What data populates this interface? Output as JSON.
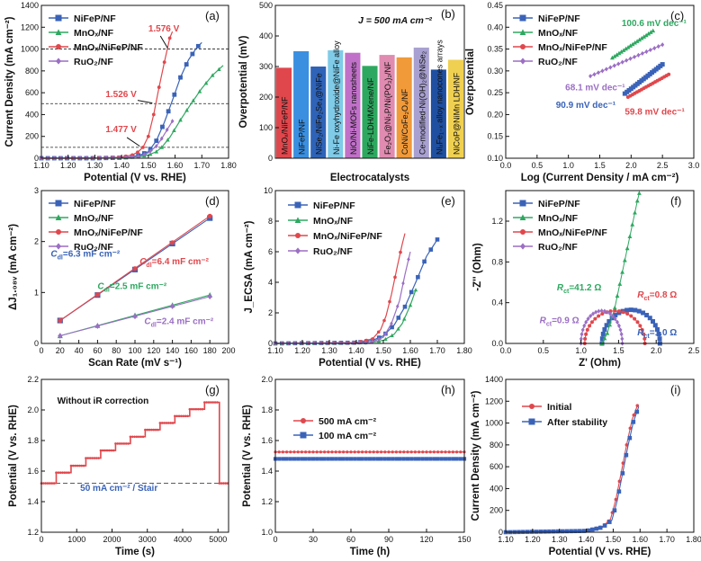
{
  "chart_data": [
    {
      "id": "a",
      "type": "line",
      "panel_label": "(a)",
      "xlabel": "Potential (V vs. RHE)",
      "ylabel": "Current Density (mA cm⁻²)",
      "xlim": [
        1.1,
        1.8
      ],
      "ylim": [
        0,
        1400
      ],
      "xticks": [
        1.1,
        1.2,
        1.3,
        1.4,
        1.5,
        1.6,
        1.7,
        1.8
      ],
      "yticks": [
        0,
        200,
        400,
        600,
        800,
        1000,
        1200,
        1400
      ],
      "ref_lines": [
        100,
        500,
        1000
      ],
      "series": [
        {
          "name": "NiFeP/NF",
          "color": "#3a63b8",
          "marker": "square",
          "x": [
            1.1,
            1.3,
            1.4,
            1.44,
            1.47,
            1.5,
            1.53,
            1.56,
            1.59,
            1.62,
            1.65,
            1.68,
            1.7
          ],
          "y": [
            0,
            0,
            5,
            15,
            30,
            60,
            160,
            330,
            530,
            740,
            900,
            1010,
            1060
          ]
        },
        {
          "name": "MnOₓ/NF",
          "color": "#2ea860",
          "marker": "triangle",
          "x": [
            1.1,
            1.4,
            1.47,
            1.5,
            1.53,
            1.55,
            1.58,
            1.62,
            1.66,
            1.7,
            1.74,
            1.78
          ],
          "y": [
            0,
            5,
            15,
            30,
            60,
            100,
            190,
            350,
            500,
            640,
            760,
            850
          ]
        },
        {
          "name": "MnOₓ/NiFeP/NF",
          "color": "#e0474c",
          "marker": "circle",
          "x": [
            1.1,
            1.3,
            1.4,
            1.44,
            1.46,
            1.48,
            1.5,
            1.52,
            1.54,
            1.56,
            1.58,
            1.59
          ],
          "y": [
            0,
            0,
            10,
            30,
            55,
            100,
            200,
            400,
            650,
            880,
            1100,
            1160
          ]
        },
        {
          "name": "RuO₂/NF",
          "color": "#9b6fc4",
          "marker": "diamond",
          "x": [
            1.1,
            1.4,
            1.47,
            1.5,
            1.53,
            1.55,
            1.57,
            1.59
          ],
          "y": [
            0,
            5,
            20,
            50,
            110,
            180,
            260,
            340
          ]
        }
      ],
      "annotations": [
        {
          "text": "1.576 V",
          "x": 1.5,
          "y": 1160,
          "color": "#e0474c"
        },
        {
          "text": "1.526 V",
          "x": 1.34,
          "y": 560,
          "color": "#e0474c"
        },
        {
          "text": "1.477 V",
          "x": 1.34,
          "y": 240,
          "color": "#e0474c"
        }
      ]
    },
    {
      "id": "b",
      "type": "bar",
      "panel_label": "(b)",
      "xlabel": "Electrocatalysts",
      "ylabel": "Overpotential (mV)",
      "ylim": [
        0,
        500
      ],
      "yticks": [
        0,
        100,
        200,
        300,
        400,
        500
      ],
      "subtitle": "J = 500 mA cm⁻²",
      "categories": [
        "MnOₓ/NiFeP/NF",
        "NiFeP/NF",
        "NiSe₂/NiFe₂Se₄@NiFe",
        "Ni-Fe oxyhydroxide@NiFe alloy",
        "NiO/Ni-MOFs nanosheets",
        "NiFe-LDH/MXene/NF",
        "Fe₂O₃@Ni₂P/Ni(PO₃)₂/NF",
        "CoNi/CoFe₂O₄/NF",
        "Ce-modified-Ni(OH)₂@NiSe₂",
        "NiₓFe₁₋ₓ alloy nanocones arrays",
        "NiCoP@NiMn LDH/NF"
      ],
      "values": [
        296,
        350,
        300,
        353,
        345,
        302,
        338,
        330,
        362,
        290,
        322
      ],
      "colors": [
        "#e0474c",
        "#3a8fe0",
        "#2e63b8",
        "#7fcbe8",
        "#c070c8",
        "#2ea860",
        "#e08bb0",
        "#f09a3a",
        "#a8a0d0",
        "#1f4fa0",
        "#f0d050"
      ]
    },
    {
      "id": "c",
      "type": "scatter",
      "panel_label": "(c)",
      "xlabel": "Log (Current Density / mA cm⁻²)",
      "ylabel": "Overpotential",
      "xlim": [
        0.0,
        3.0
      ],
      "ylim": [
        0.1,
        0.45
      ],
      "xticks": [
        0.0,
        0.5,
        1.0,
        1.5,
        2.0,
        2.5,
        3.0
      ],
      "yticks": [
        0.1,
        0.15,
        0.2,
        0.25,
        0.3,
        0.35,
        0.4,
        0.45
      ],
      "series": [
        {
          "name": "NiFeP/NF",
          "color": "#3a63b8",
          "marker": "square",
          "x0": 1.9,
          "x1": 2.5,
          "y0": 0.248,
          "y1": 0.315
        },
        {
          "name": "MnOₓ/NF",
          "color": "#2ea860",
          "marker": "triangle",
          "x0": 1.7,
          "x1": 2.35,
          "y0": 0.33,
          "y1": 0.392
        },
        {
          "name": "MnOₓ/NiFeP/NF",
          "color": "#e0474c",
          "marker": "circle",
          "x0": 1.95,
          "x1": 2.6,
          "y0": 0.24,
          "y1": 0.292
        },
        {
          "name": "RuO₂/NF",
          "color": "#9b6fc4",
          "marker": "diamond",
          "x0": 1.35,
          "x1": 2.5,
          "y0": 0.288,
          "y1": 0.36
        }
      ],
      "annotations": [
        {
          "text": "100.6 mV dec⁻¹",
          "x": 1.85,
          "y": 0.403,
          "color": "#2ea860"
        },
        {
          "text": "68.1 mV dec⁻¹",
          "x": 0.95,
          "y": 0.255,
          "color": "#9b6fc4"
        },
        {
          "text": "90.9 mV dec⁻¹",
          "x": 0.8,
          "y": 0.215,
          "color": "#3a63b8"
        },
        {
          "text": "59.8 mV dec⁻¹",
          "x": 1.9,
          "y": 0.2,
          "color": "#e0474c"
        }
      ]
    },
    {
      "id": "d",
      "type": "scatter",
      "panel_label": "(d)",
      "xlabel": "Scan Rate (mV s⁻¹)",
      "ylabel": "ΔJ₁.₀₈ᵥ (mA cm⁻²)",
      "xlim": [
        0,
        200
      ],
      "ylim": [
        0.0,
        3.0
      ],
      "xticks": [
        0,
        20,
        40,
        60,
        80,
        100,
        120,
        140,
        160,
        180,
        200
      ],
      "yticks": [
        0,
        1,
        2,
        3
      ],
      "x": [
        20,
        60,
        100,
        140,
        180
      ],
      "series": [
        {
          "name": "NiFeP/NF",
          "color": "#3a63b8",
          "marker": "square",
          "y": [
            0.45,
            0.95,
            1.45,
            1.96,
            2.46
          ]
        },
        {
          "name": "MnOₓ/NF",
          "color": "#2ea860",
          "marker": "triangle",
          "y": [
            0.15,
            0.35,
            0.55,
            0.75,
            0.95
          ]
        },
        {
          "name": "MnOₓ/NiFeP/NF",
          "color": "#e0474c",
          "marker": "circle",
          "y": [
            0.45,
            0.96,
            1.47,
            1.98,
            2.5
          ]
        },
        {
          "name": "RuO₂/NF",
          "color": "#9b6fc4",
          "marker": "diamond",
          "y": [
            0.15,
            0.34,
            0.53,
            0.73,
            0.92
          ]
        }
      ],
      "annotations": [
        {
          "text": "C",
          "sub": "dl",
          "rest": "=6.3 mF cm⁻²",
          "x": 10,
          "y": 1.7,
          "color": "#3a63b8"
        },
        {
          "text": "C",
          "sub": "dl",
          "rest": "=6.4 mF cm⁻²",
          "x": 105,
          "y": 1.55,
          "color": "#e0474c"
        },
        {
          "text": "C",
          "sub": "dl",
          "rest": "=2.5 mF cm⁻²",
          "x": 60,
          "y": 1.07,
          "color": "#2ea860"
        },
        {
          "text": "C",
          "sub": "dl",
          "rest": "=2.4 mF cm⁻²",
          "x": 110,
          "y": 0.38,
          "color": "#9b6fc4"
        }
      ]
    },
    {
      "id": "e",
      "type": "line",
      "panel_label": "(e)",
      "xlabel": "Potential (V vs. RHE)",
      "ylabel": "J_ECSA (mA cm⁻²)",
      "xlim": [
        1.1,
        1.8
      ],
      "ylim": [
        0,
        10
      ],
      "xticks": [
        1.1,
        1.2,
        1.3,
        1.4,
        1.5,
        1.6,
        1.7,
        1.8
      ],
      "yticks": [
        0,
        2,
        4,
        6,
        8,
        10
      ],
      "series": [
        {
          "name": "NiFeP/NF",
          "color": "#3a63b8",
          "marker": "square",
          "x": [
            1.1,
            1.4,
            1.46,
            1.5,
            1.54,
            1.58,
            1.62,
            1.66,
            1.7
          ],
          "y": [
            0,
            0.05,
            0.2,
            0.5,
            1.2,
            2.4,
            4.0,
            5.7,
            6.8
          ]
        },
        {
          "name": "MnOₓ/NF",
          "color": "#2ea860",
          "marker": "triangle",
          "x": [
            1.1,
            1.45,
            1.5,
            1.54,
            1.57,
            1.6,
            1.62
          ],
          "y": [
            0,
            0.05,
            0.2,
            0.6,
            1.3,
            2.5,
            3.5
          ]
        },
        {
          "name": "MnOₓ/NiFeP/NF",
          "color": "#e0474c",
          "marker": "circle",
          "x": [
            1.1,
            1.4,
            1.46,
            1.49,
            1.51,
            1.53,
            1.55,
            1.57,
            1.58
          ],
          "y": [
            0,
            0.05,
            0.3,
            0.9,
            1.8,
            3.2,
            4.9,
            6.5,
            7.2
          ]
        },
        {
          "name": "RuO₂/NF",
          "color": "#9b6fc4",
          "marker": "diamond",
          "x": [
            1.1,
            1.45,
            1.5,
            1.53,
            1.56,
            1.58,
            1.6
          ],
          "y": [
            0,
            0.05,
            0.4,
            1.3,
            2.8,
            4.5,
            6.0
          ]
        }
      ]
    },
    {
      "id": "f",
      "type": "scatter",
      "panel_label": "(f)",
      "xlabel": "Z' (Ohm)",
      "ylabel": "-Z'' (Ohm)",
      "xlim": [
        0.0,
        2.5
      ],
      "ylim": [
        0.0,
        1.5
      ],
      "xticks": [
        0.0,
        0.5,
        1.0,
        1.5,
        2.0,
        2.5
      ],
      "yticks": [
        0.0,
        0.4,
        0.8,
        1.2
      ],
      "series": [
        {
          "name": "NiFeP/NF",
          "color": "#3a63b8",
          "marker": "square",
          "arc": [
            1.28,
            2.05,
            0.33
          ]
        },
        {
          "name": "MnOₓ/NF",
          "color": "#2ea860",
          "marker": "triangle",
          "x": [
            1.28,
            1.35,
            1.45,
            1.55,
            1.65,
            1.75,
            1.8
          ],
          "y": [
            0.0,
            0.1,
            0.35,
            0.7,
            1.05,
            1.4,
            1.55
          ]
        },
        {
          "name": "MnOₓ/NiFeP/NF",
          "color": "#e0474c",
          "marker": "circle",
          "arc": [
            1.05,
            1.85,
            0.32
          ]
        },
        {
          "name": "RuO₂/NF",
          "color": "#9b6fc4",
          "marker": "diamond",
          "arc": [
            1.0,
            1.55,
            0.32
          ]
        }
      ],
      "annotations": [
        {
          "text": "R",
          "sub": "ct",
          "rest": "=41.2 Ω",
          "x": 0.68,
          "y": 0.52,
          "color": "#2ea860"
        },
        {
          "text": "R",
          "sub": "ct",
          "rest": "=0.8 Ω",
          "x": 1.75,
          "y": 0.45,
          "color": "#e0474c"
        },
        {
          "text": "R",
          "sub": "ct",
          "rest": "=0.9 Ω",
          "x": 0.45,
          "y": 0.2,
          "color": "#9b6fc4"
        },
        {
          "text": "R",
          "sub": "ct",
          "rest": "=1.0 Ω",
          "x": 1.75,
          "y": 0.08,
          "color": "#3a63b8"
        }
      ]
    },
    {
      "id": "g",
      "type": "line",
      "panel_label": "(g)",
      "xlabel": "Time (s)",
      "ylabel": "Potential (V vs. RHE)",
      "xlim": [
        0,
        5300
      ],
      "ylim": [
        1.2,
        2.2
      ],
      "xticks": [
        0,
        1000,
        2000,
        3000,
        4000,
        5000
      ],
      "yticks": [
        1.2,
        1.4,
        1.6,
        1.8,
        2.0,
        2.2
      ],
      "baseline": 1.52,
      "step_width_s": 420,
      "levels": [
        1.52,
        1.59,
        1.635,
        1.685,
        1.735,
        1.78,
        1.825,
        1.87,
        1.915,
        1.96,
        2.005,
        2.05
      ],
      "color": "#e0474c",
      "annotations": [
        {
          "text": "Without iR correction",
          "x": 450,
          "y": 2.04,
          "color": "#111111"
        },
        {
          "text": "50 mA cm⁻² / Stair",
          "x": 1100,
          "y": 1.47,
          "color": "#3a63b8"
        }
      ]
    },
    {
      "id": "h",
      "type": "line",
      "panel_label": "(h)",
      "xlabel": "Time (h)",
      "ylabel": "Potential (V vs. RHE)",
      "xlim": [
        0,
        150
      ],
      "ylim": [
        1.0,
        2.0
      ],
      "xticks": [
        0,
        30,
        60,
        90,
        120,
        150
      ],
      "yticks": [
        1.0,
        1.2,
        1.4,
        1.6,
        1.8,
        2.0
      ],
      "series": [
        {
          "name": "500 mA cm⁻²",
          "color": "#e0474c",
          "marker": "circle",
          "value": 1.525
        },
        {
          "name": "100 mA cm⁻²",
          "color": "#3a63b8",
          "marker": "square",
          "value": 1.48
        }
      ]
    },
    {
      "id": "i",
      "type": "line",
      "panel_label": "(i)",
      "xlabel": "Potential (V vs. RHE)",
      "ylabel": "Current Density (mA cm⁻²)",
      "xlim": [
        1.1,
        1.8
      ],
      "ylim": [
        0,
        1400
      ],
      "xticks": [
        1.1,
        1.2,
        1.3,
        1.4,
        1.5,
        1.6,
        1.7,
        1.8
      ],
      "yticks": [
        0,
        200,
        400,
        600,
        800,
        1000,
        1200,
        1400
      ],
      "series": [
        {
          "name": "Initial",
          "color": "#e0474c",
          "marker": "circle",
          "x": [
            1.1,
            1.4,
            1.46,
            1.49,
            1.51,
            1.53,
            1.55,
            1.57,
            1.59
          ],
          "y": [
            0,
            15,
            50,
            120,
            300,
            550,
            800,
            1030,
            1160
          ]
        },
        {
          "name": "After stability",
          "color": "#3a63b8",
          "marker": "square",
          "x": [
            1.1,
            1.4,
            1.46,
            1.495,
            1.515,
            1.535,
            1.555,
            1.575,
            1.595
          ],
          "y": [
            0,
            12,
            45,
            110,
            290,
            540,
            790,
            1010,
            1150
          ]
        }
      ]
    }
  ]
}
